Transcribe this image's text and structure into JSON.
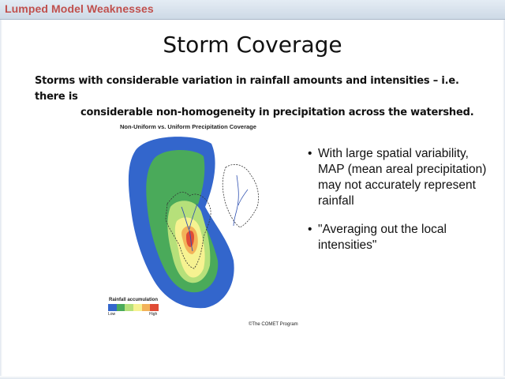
{
  "header": {
    "title": "Lumped Model Weaknesses"
  },
  "slide": {
    "title": "Storm Coverage",
    "subtitle_line1": "Storms with considerable variation in rainfall amounts and intensities – i.e. there is",
    "subtitle_line2": "considerable non-homogeneity in precipitation across the watershed."
  },
  "figure": {
    "title": "Non-Uniform vs. Uniform Precipitation Coverage",
    "legend_label": "Rainfall accumulation",
    "legend_low": "Low",
    "legend_high": "High",
    "legend_colors": [
      "#3366cc",
      "#4aaa5a",
      "#b6e07a",
      "#f6f291",
      "#f3b259",
      "#e04c36"
    ],
    "credit": "©The COMET Program"
  },
  "bullets": [
    {
      "marker": "•",
      "text": "With large spatial variability, MAP (mean areal precipitation) may not accurately represent rainfall"
    },
    {
      "marker": "•",
      "text": "\"Averaging out the local intensities\""
    }
  ],
  "colors": {
    "header_title": "#c0504d",
    "header_bg": "#d8e2ee"
  }
}
